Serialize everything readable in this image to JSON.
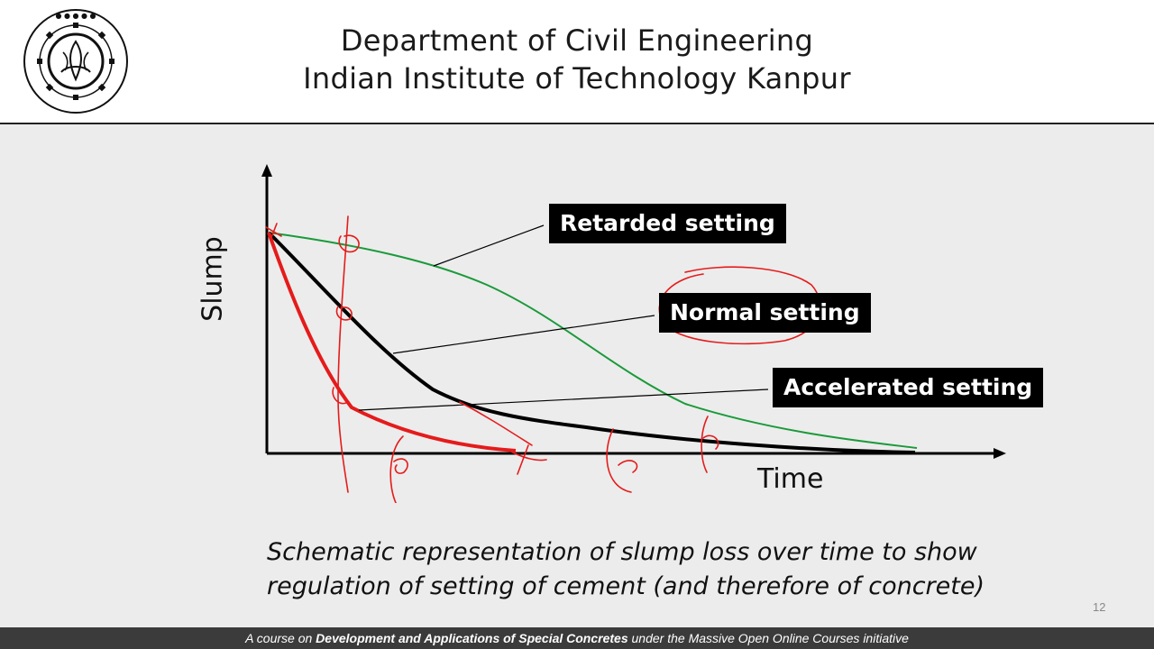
{
  "header": {
    "line1": "Department of Civil Engineering",
    "line2": "Indian Institute of Technology Kanpur",
    "logo_icon": "iit-kanpur-seal-icon"
  },
  "slide": {
    "page_number": "12",
    "caption_line1": "Schematic representation of slump loss  over time to show",
    "caption_line2": "regulation of setting of cement (and therefore of concrete)"
  },
  "chart_data": {
    "type": "line",
    "xlabel": "Time",
    "ylabel": "Slump",
    "annotations": [
      "Retarded setting",
      "Normal setting",
      "Accelerated setting"
    ],
    "series": [
      {
        "name": "Retarded setting",
        "color": "#1a9a3a"
      },
      {
        "name": "Normal setting",
        "color": "#000000"
      },
      {
        "name": "Accelerated setting",
        "color": "#e51b1b"
      }
    ]
  },
  "footer": {
    "prefix": "A course on ",
    "course": "Development and Applications of Special Concretes",
    "suffix": " under the Massive Open Online Courses initiative"
  }
}
